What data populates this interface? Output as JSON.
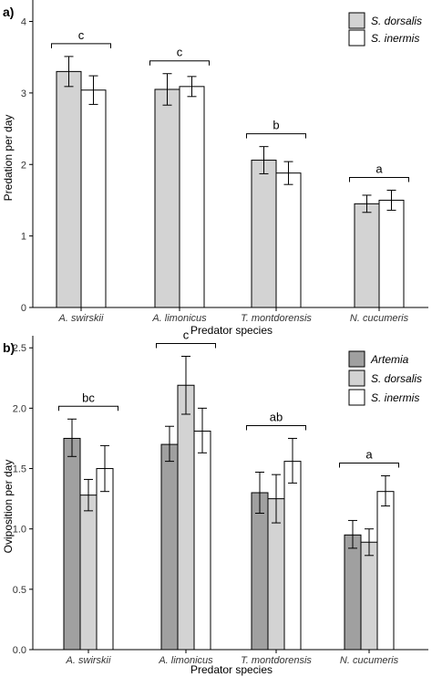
{
  "chart_data": [
    {
      "panel_label": "a)",
      "type": "bar",
      "categories": [
        "A. swirskii",
        "A. limonicus",
        "T. montdorensis",
        "N. cucumeris"
      ],
      "series": [
        {
          "name": "S. dorsalis",
          "color": "#d3d3d3",
          "values": [
            3.3,
            3.05,
            2.06,
            1.45
          ],
          "err_low": [
            3.09,
            2.83,
            1.87,
            1.33
          ],
          "err_high": [
            3.51,
            3.27,
            2.25,
            1.57
          ]
        },
        {
          "name": "S. inermis",
          "color": "#ffffff",
          "values": [
            3.04,
            3.09,
            1.88,
            1.5
          ],
          "err_low": [
            2.84,
            2.95,
            1.72,
            1.36
          ],
          "err_high": [
            3.24,
            3.23,
            2.04,
            1.64
          ]
        }
      ],
      "significance": [
        "c",
        "c",
        "b",
        "a"
      ],
      "xlabel": "Predator species",
      "ylabel": "Predation per day",
      "ylim": [
        0,
        4.3
      ],
      "yticks": [
        "0",
        "1",
        "2",
        "3",
        "4"
      ],
      "legend_position": "top-right"
    },
    {
      "panel_label": "b)",
      "type": "bar",
      "categories": [
        "A. swirskii",
        "A. limonicus",
        "T. montdorensis",
        "N. cucumeris"
      ],
      "series": [
        {
          "name": "Artemia",
          "color": "#a0a0a0",
          "values": [
            1.75,
            1.7,
            1.3,
            0.95
          ],
          "err_low": [
            1.6,
            1.56,
            1.13,
            0.84
          ],
          "err_high": [
            1.91,
            1.85,
            1.47,
            1.07
          ]
        },
        {
          "name": "S. dorsalis",
          "color": "#d3d3d3",
          "values": [
            1.28,
            2.19,
            1.25,
            0.89
          ],
          "err_low": [
            1.15,
            1.95,
            1.05,
            0.78
          ],
          "err_high": [
            1.41,
            2.43,
            1.45,
            1.0
          ]
        },
        {
          "name": "S. inermis",
          "color": "#ffffff",
          "values": [
            1.5,
            1.81,
            1.56,
            1.31
          ],
          "err_low": [
            1.31,
            1.63,
            1.38,
            1.19
          ],
          "err_high": [
            1.69,
            2.0,
            1.75,
            1.44
          ]
        }
      ],
      "significance": [
        "bc",
        "c",
        "ab",
        "a"
      ],
      "xlabel": "Predator species",
      "ylabel": "Oviposition per day",
      "ylim": [
        0,
        2.6
      ],
      "yticks": [
        "0.0",
        "0.5",
        "1.0",
        "1.5",
        "2.0",
        "2.5"
      ],
      "legend_position": "top-right"
    }
  ]
}
